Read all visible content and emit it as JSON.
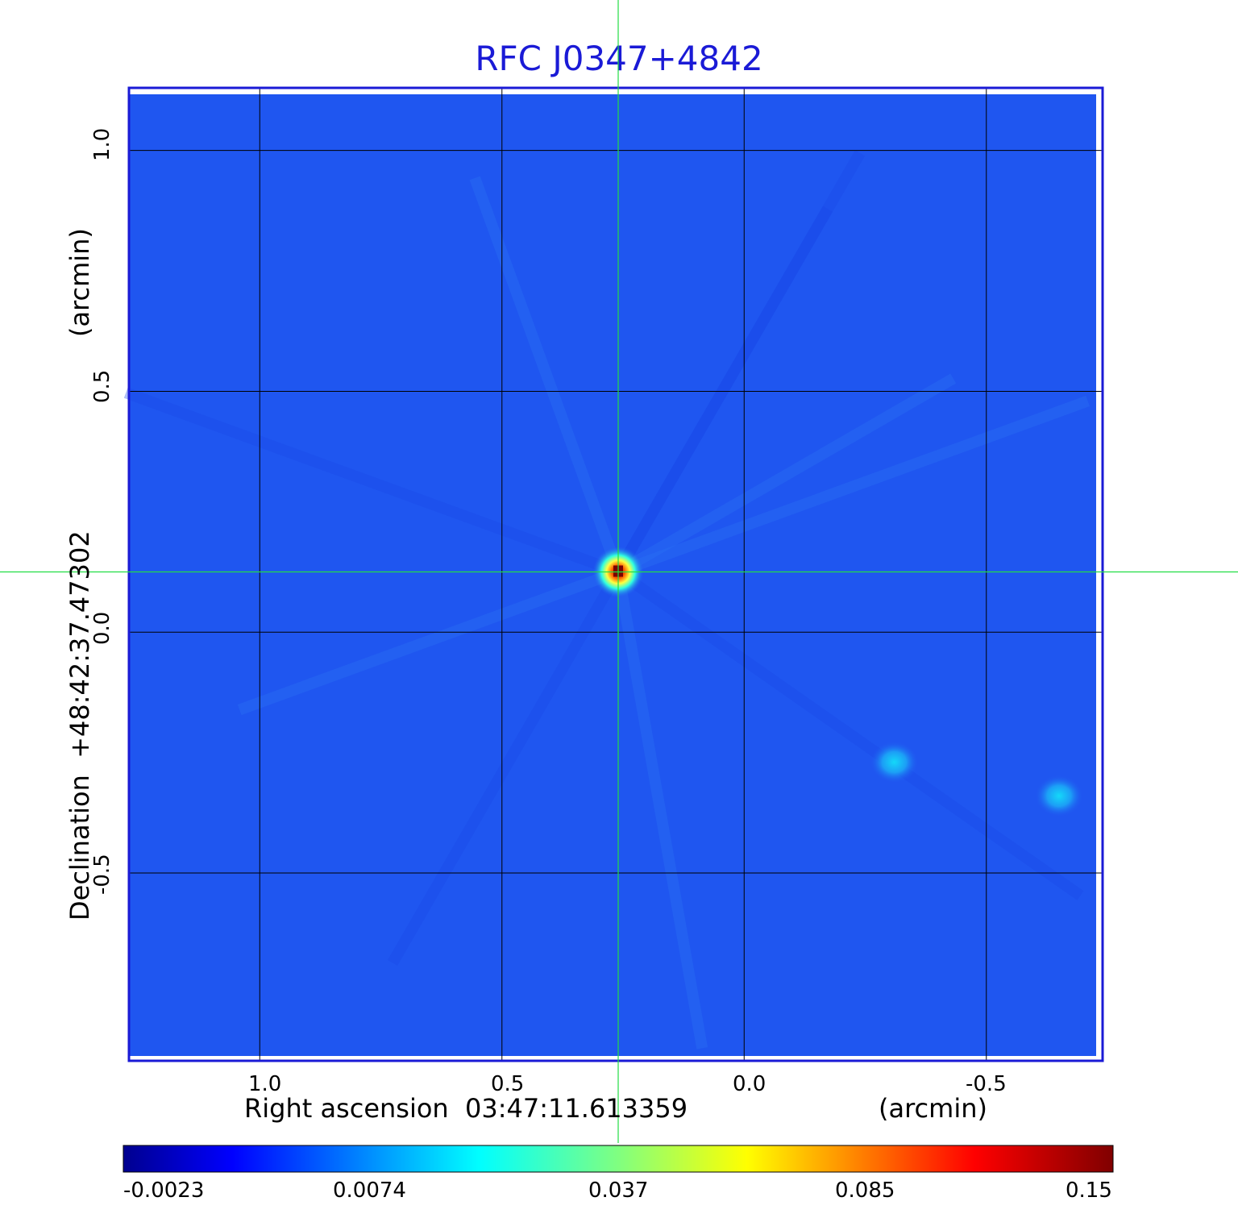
{
  "chart_data": {
    "type": "heatmap",
    "title": "RFC J0347+4842",
    "xlabel": "Right ascension  03:47:11.613359",
    "xlabel_units": "(arcmin)",
    "ylabel": "Declination  +48:42:37.47302",
    "ylabel_units": "(arcmin)",
    "x_ticks": [
      "1.0",
      "0.5",
      "0.0",
      "-0.5"
    ],
    "y_ticks": [
      "1.0",
      "0.5",
      "0.0",
      "-0.5"
    ],
    "xlim": [
      1.27,
      -0.74
    ],
    "ylim": [
      -0.89,
      1.13
    ],
    "grid": true,
    "colormap": "jet",
    "colorbar_ticks": [
      "-0.0023",
      "0.0074",
      "0.037",
      "0.085",
      "0.15"
    ],
    "colorbar_range": [
      -0.0023,
      0.15
    ],
    "background_level": 0.003,
    "sources": [
      {
        "x": 0.26,
        "y": 0.125,
        "peak": 0.15
      },
      {
        "x": -0.31,
        "y": -0.27,
        "peak": 0.01
      },
      {
        "x": -0.65,
        "y": -0.34,
        "peak": 0.01
      }
    ],
    "crosshair": {
      "x": 0.26,
      "y": 0.125
    }
  },
  "colors": {
    "title": "#1a1ad6",
    "frame": "#1a1ad6",
    "crosshair": "#22dd44",
    "grid": "#000000"
  }
}
